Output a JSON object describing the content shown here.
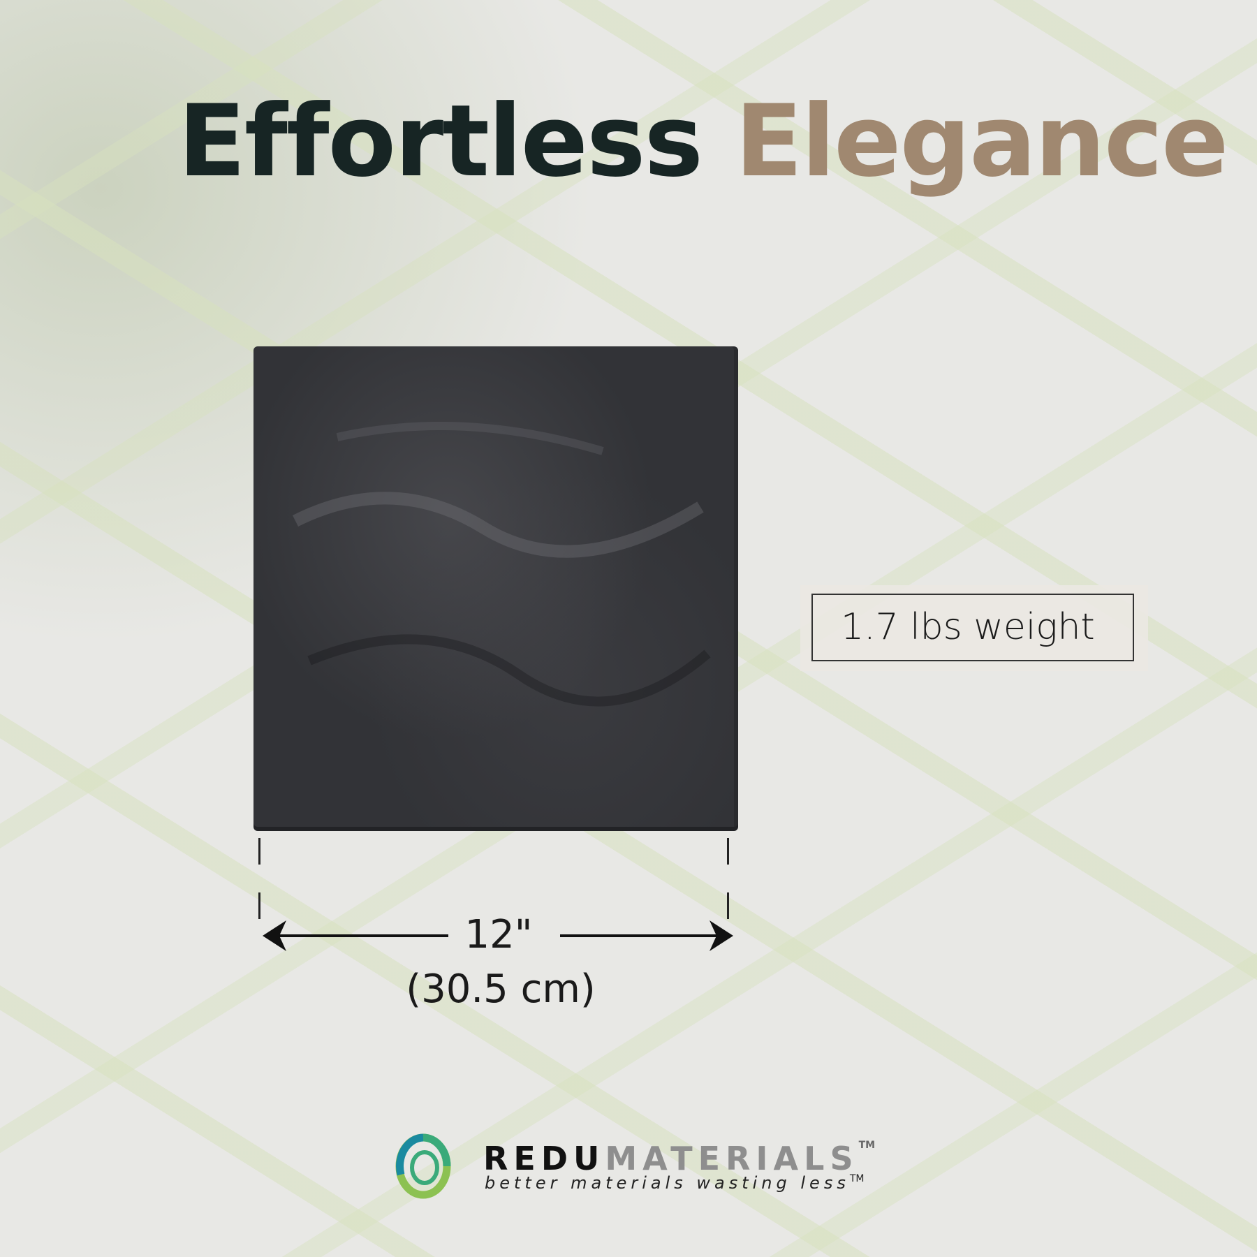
{
  "title": {
    "part1": "Effortless",
    "part2": "Elegance",
    "color_dark": "#172524",
    "color_accent": "#a08870"
  },
  "product": {
    "weight_label": "1.7 lbs weight",
    "dimension_in": "12\"",
    "dimension_cm": "(30.5 cm)",
    "tile_color": "#323337"
  },
  "logo": {
    "brand_bold": "REDU",
    "brand_light": "MATERIALS",
    "trademark": "TM",
    "tagline": "better materials wasting less",
    "tagline_tm": "TM"
  }
}
